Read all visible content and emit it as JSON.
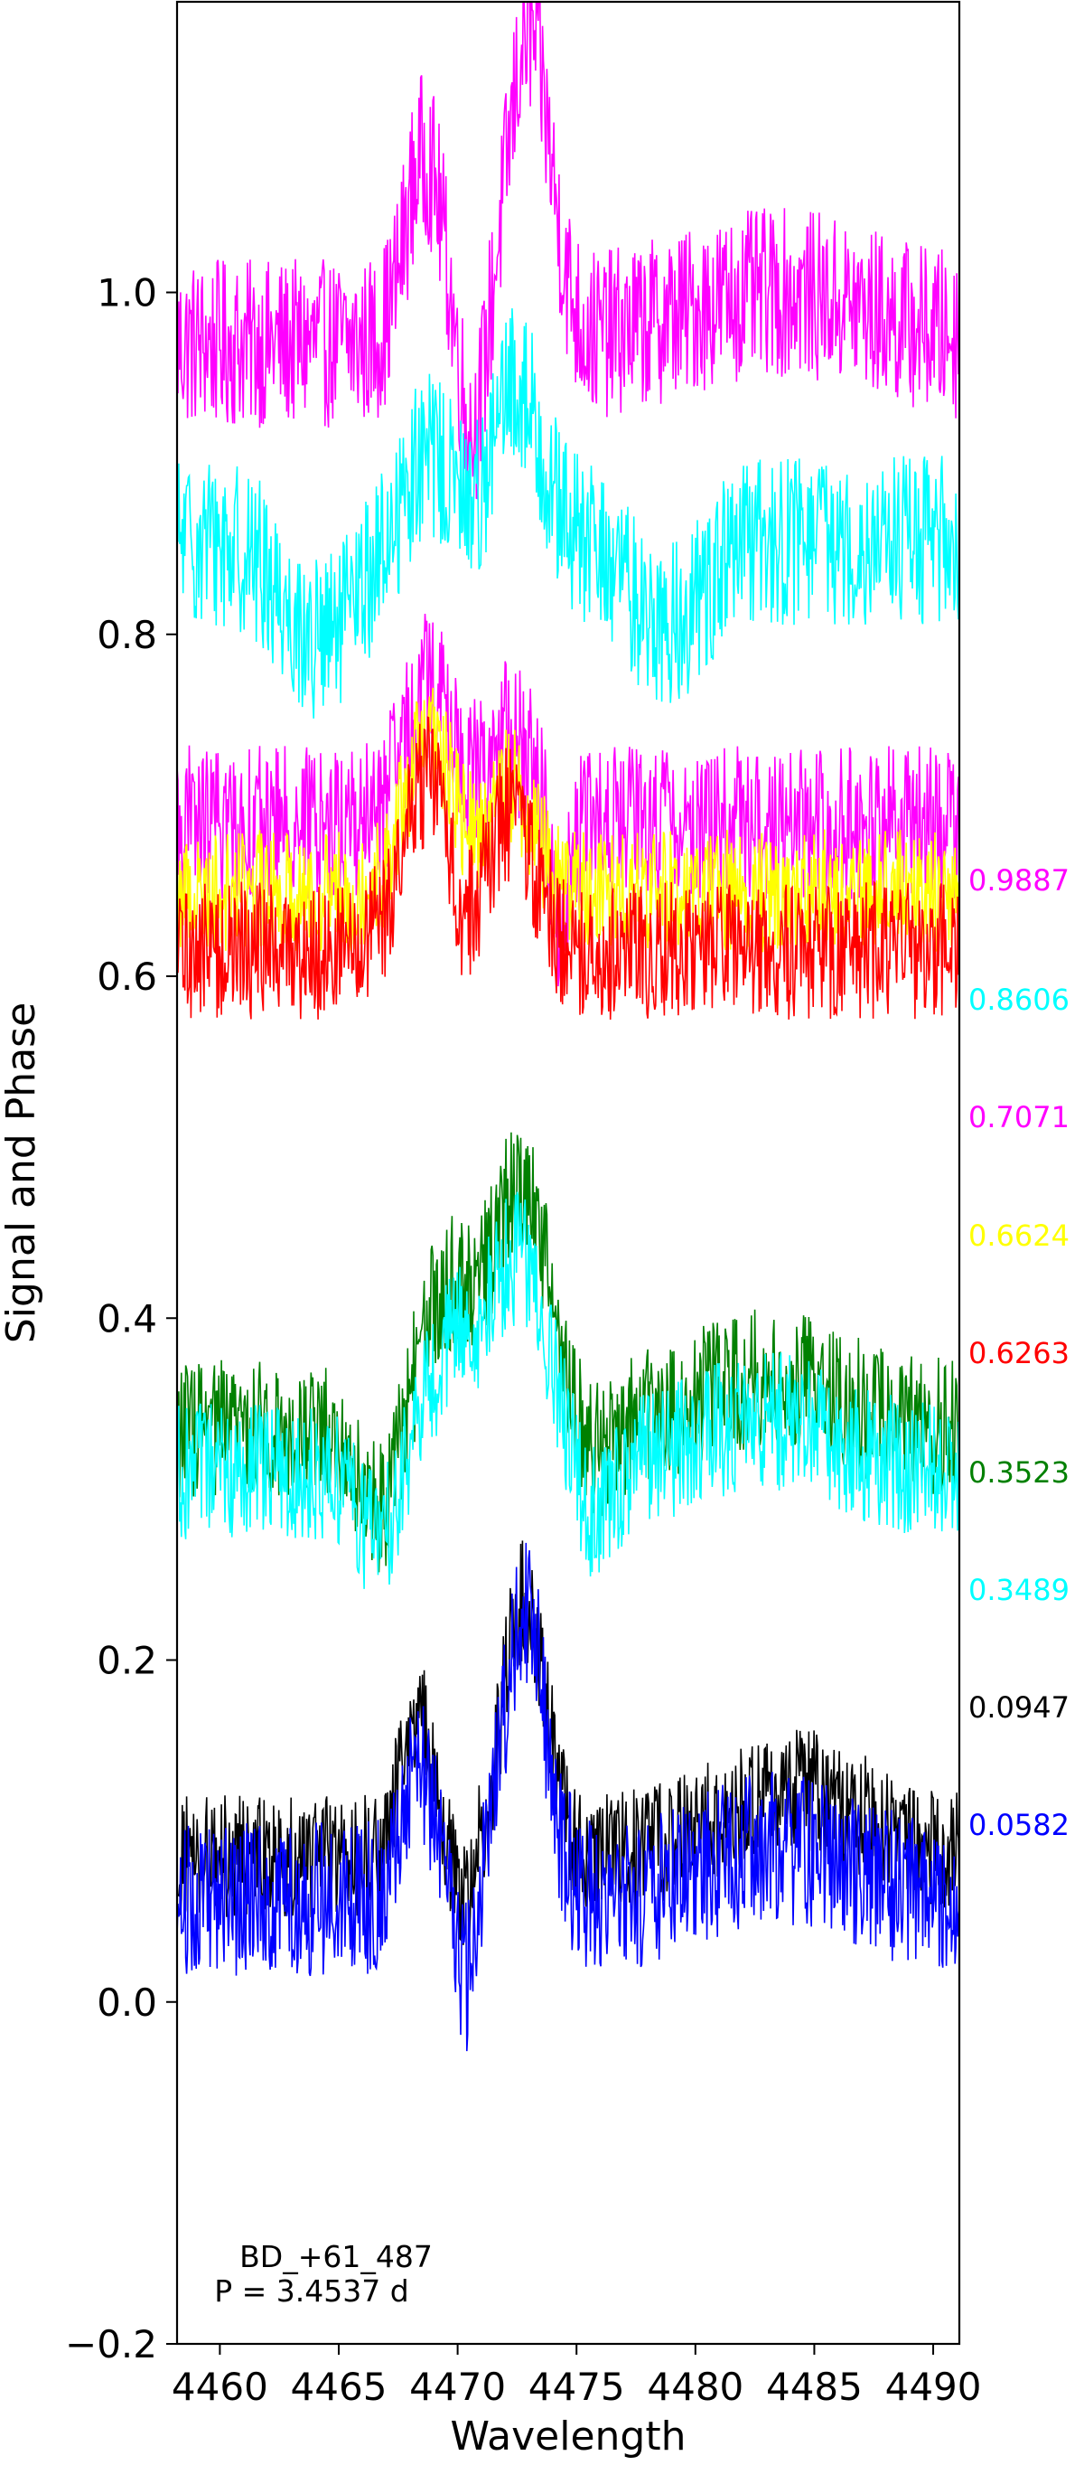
{
  "chart_data": {
    "type": "line",
    "title": "",
    "xlabel": "Wavelength",
    "ylabel": "Signal and Phase",
    "xlim": [
      4458.2,
      4491.1
    ],
    "ylim": [
      -0.2,
      1.17
    ],
    "xticks": [
      4460,
      4465,
      4470,
      4475,
      4480,
      4485,
      4490
    ],
    "yticks": [
      -0.2,
      0.0,
      0.2,
      0.4,
      0.6,
      0.8,
      1.0
    ],
    "ytick_labels": [
      "−0.2",
      "0.0",
      "0.2",
      "0.4",
      "0.6",
      "0.8",
      "1.0"
    ],
    "grid": false,
    "annotation": {
      "lines": [
        "BD_+61_487",
        "P = 3.4537 d"
      ]
    },
    "series": [
      {
        "name": "0.9887",
        "color": "#ff00ff",
        "offset": 0.97,
        "noise": 0.055,
        "features": [
          {
            "center": 4468.6,
            "amp": 0.11,
            "width": 0.8
          },
          {
            "center": 4470.6,
            "amp": -0.06,
            "width": 0.5
          },
          {
            "center": 4473.0,
            "amp": 0.18,
            "width": 0.9
          },
          {
            "center": 4483.5,
            "amp": 0.03,
            "width": 4.0
          }
        ]
      },
      {
        "name": "0.8606",
        "color": "#00ffff",
        "offset": 0.855,
        "noise": 0.055,
        "features": [
          {
            "center": 4464.2,
            "amp": -0.06,
            "width": 1.5
          },
          {
            "center": 4468.8,
            "amp": 0.05,
            "width": 1.0
          },
          {
            "center": 4472.5,
            "amp": 0.09,
            "width": 1.0
          },
          {
            "center": 4478.8,
            "amp": -0.05,
            "width": 1.5
          }
        ]
      },
      {
        "name": "0.7071",
        "color": "#ff00ff",
        "offset": 0.69,
        "noise": 0.05,
        "features": [
          {
            "center": 4468.8,
            "amp": 0.08,
            "width": 1.0
          },
          {
            "center": 4472.2,
            "amp": 0.05,
            "width": 1.0
          },
          {
            "center": 4474.3,
            "amp": -0.06,
            "width": 0.4
          }
        ]
      },
      {
        "name": "0.6624",
        "color": "#ffff00",
        "offset": 0.65,
        "noise": 0.04,
        "features": [
          {
            "center": 4468.8,
            "amp": 0.09,
            "width": 1.0
          },
          {
            "center": 4472.2,
            "amp": 0.06,
            "width": 1.0
          }
        ]
      },
      {
        "name": "0.6263",
        "color": "#ff0000",
        "offset": 0.615,
        "noise": 0.045,
        "features": [
          {
            "center": 4468.7,
            "amp": 0.1,
            "width": 1.0
          },
          {
            "center": 4472.2,
            "amp": 0.08,
            "width": 1.0
          },
          {
            "center": 4470.3,
            "amp": -0.02,
            "width": 0.4
          }
        ]
      },
      {
        "name": "0.3523",
        "color": "#008000",
        "offset": 0.335,
        "noise": 0.045,
        "features": [
          {
            "center": 4466.7,
            "amp": -0.05,
            "width": 0.8
          },
          {
            "center": 4469.6,
            "amp": 0.08,
            "width": 1.2
          },
          {
            "center": 4472.7,
            "amp": 0.14,
            "width": 1.2
          },
          {
            "center": 4475.6,
            "amp": -0.02,
            "width": 0.8
          },
          {
            "center": 4483.0,
            "amp": 0.03,
            "width": 3.0
          }
        ]
      },
      {
        "name": "0.3489",
        "color": "#00ffff",
        "offset": 0.31,
        "noise": 0.045,
        "features": [
          {
            "center": 4466.7,
            "amp": -0.04,
            "width": 0.8
          },
          {
            "center": 4469.8,
            "amp": 0.07,
            "width": 1.2
          },
          {
            "center": 4472.6,
            "amp": 0.12,
            "width": 1.2
          },
          {
            "center": 4475.8,
            "amp": -0.03,
            "width": 0.8
          },
          {
            "center": 4483.0,
            "amp": 0.03,
            "width": 3.0
          }
        ]
      },
      {
        "name": "0.0947",
        "color": "#000000",
        "offset": 0.085,
        "noise": 0.04,
        "features": [
          {
            "center": 4468.3,
            "amp": 0.08,
            "width": 0.7
          },
          {
            "center": 4470.3,
            "amp": -0.03,
            "width": 0.4
          },
          {
            "center": 4472.8,
            "amp": 0.15,
            "width": 0.9
          },
          {
            "center": 4484.0,
            "amp": 0.04,
            "width": 3.0
          }
        ]
      },
      {
        "name": "0.0582",
        "color": "#0000ff",
        "offset": 0.06,
        "noise": 0.05,
        "features": [
          {
            "center": 4468.3,
            "amp": 0.08,
            "width": 0.7
          },
          {
            "center": 4470.4,
            "amp": -0.05,
            "width": 0.4
          },
          {
            "center": 4472.8,
            "amp": 0.17,
            "width": 0.9
          },
          {
            "center": 4483.5,
            "amp": 0.03,
            "width": 3.0
          }
        ]
      }
    ]
  }
}
